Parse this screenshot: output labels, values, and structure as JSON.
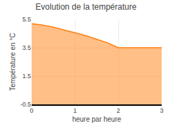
{
  "chart_data": {
    "type": "area",
    "title": "Evolution de la température",
    "xlabel": "heure par heure",
    "ylabel": "Température en °C",
    "x": [
      0,
      0.25,
      0.5,
      0.75,
      1.0,
      1.25,
      1.5,
      1.75,
      2.0,
      2.5,
      3.0
    ],
    "values": [
      5.2,
      5.1,
      4.95,
      4.75,
      4.55,
      4.35,
      4.1,
      3.85,
      3.5,
      3.5,
      3.5
    ],
    "xlim": [
      0,
      3
    ],
    "ylim": [
      -0.5,
      5.5
    ],
    "xticks": [
      0,
      1,
      2,
      3
    ],
    "yticks": [
      -0.5,
      1.5,
      3.5,
      5.5
    ],
    "grid": true
  }
}
